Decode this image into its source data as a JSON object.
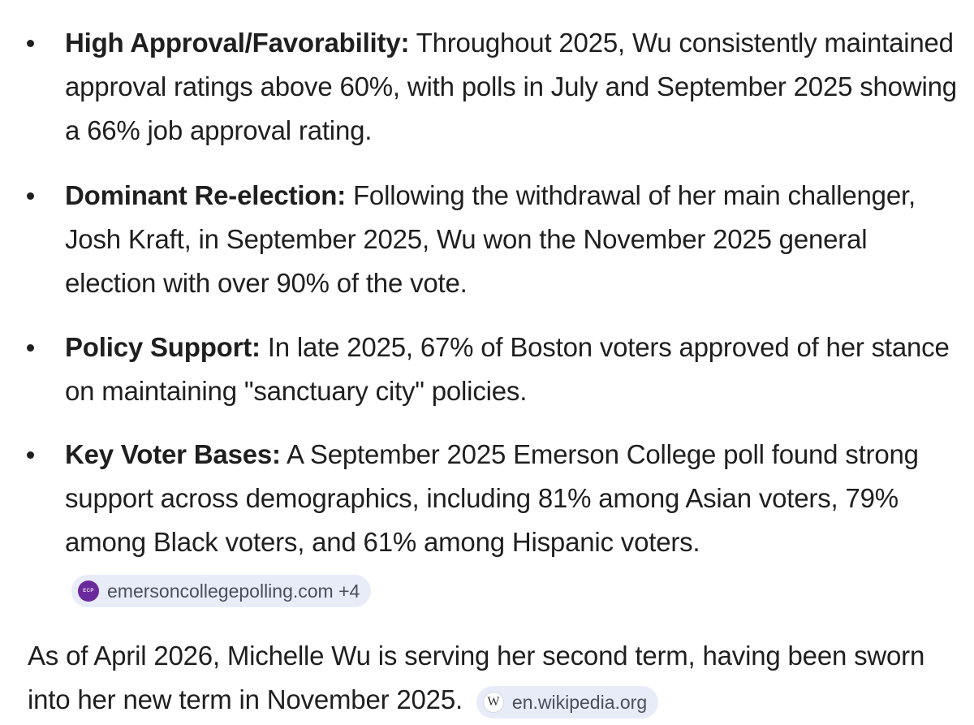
{
  "bullets": [
    {
      "label": "High Approval/Favorability:",
      "text": " Throughout 2025, Wu consistently maintained approval ratings above 60%, with polls in July and September 2025 showing a 66% job approval rating."
    },
    {
      "label": "Dominant Re-election:",
      "text": " Following the withdrawal of her main challenger, Josh Kraft, in September 2025, Wu won the November 2025 general election with over 90% of the vote."
    },
    {
      "label": "Policy Support:",
      "text": " In late 2025, 67% of Boston voters approved of her stance on maintaining \"sanctuary city\" policies."
    },
    {
      "label": "Key Voter Bases:",
      "text": " A September 2025 Emerson College poll found strong support across demographics, including 81% among Asian voters, 79% among Black voters, and 61% among Hispanic voters.",
      "source_chip": {
        "icon": "emerson-college-polling-logo-icon",
        "icon_text": "ECP",
        "label": "emersoncollegepolling.com +4"
      }
    }
  ],
  "summary": {
    "text": "As of April 2026, Michelle Wu is serving her second term, having been sworn into her new term in November 2025.",
    "source_chip": {
      "icon": "wikipedia-logo-icon",
      "icon_text": "W",
      "label": "en.wikipedia.org"
    }
  },
  "colors": {
    "text": "#1f1f1f",
    "chip_background": "#e8ecf8",
    "chip_text": "#4a4f5c",
    "ecp_logo": "#6b2a9c"
  }
}
